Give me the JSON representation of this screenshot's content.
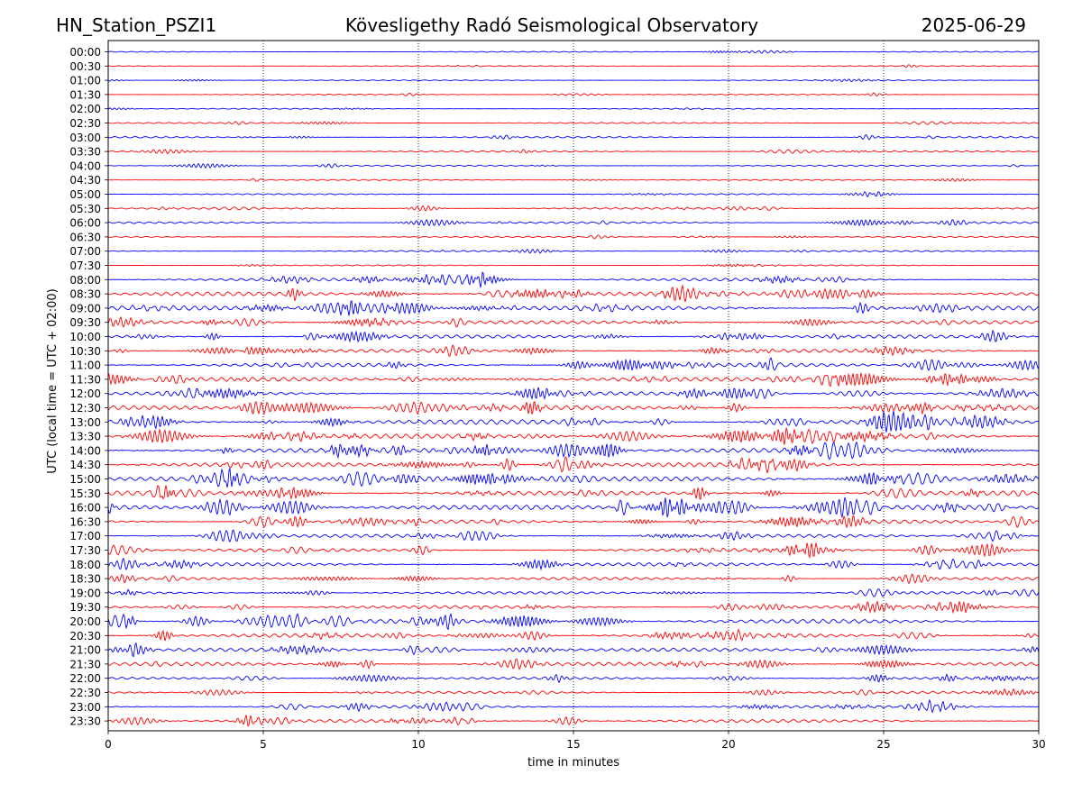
{
  "header": {
    "station": "HN_Station_PSZI1",
    "observatory": "Kövesligethy Radó Seismological Observatory",
    "date": "2025-06-29"
  },
  "chart_data": {
    "type": "line",
    "title": "Kövesligethy Radó Seismological Observatory",
    "xlabel": "time in minutes",
    "ylabel": "UTC (local time = UTC + 02:00)",
    "xlim": [
      0,
      30
    ],
    "x_ticks": [
      "0",
      "5",
      "10",
      "15",
      "20",
      "25",
      "30"
    ],
    "y_ticks": [
      "00:00",
      "00:30",
      "01:00",
      "01:30",
      "02:00",
      "02:30",
      "03:00",
      "03:30",
      "04:00",
      "04:30",
      "05:00",
      "05:30",
      "06:00",
      "06:30",
      "07:00",
      "07:30",
      "08:00",
      "08:30",
      "09:00",
      "09:30",
      "10:00",
      "10:30",
      "11:00",
      "11:30",
      "12:00",
      "12:30",
      "13:00",
      "13:30",
      "14:00",
      "14:30",
      "15:00",
      "15:30",
      "16:00",
      "16:30",
      "17:00",
      "17:30",
      "18:00",
      "18:30",
      "19:00",
      "19:30",
      "20:00",
      "20:30",
      "21:00",
      "21:30",
      "22:00",
      "22:30",
      "23:00",
      "23:30"
    ],
    "vertical_gridlines_at": [
      5,
      10,
      15,
      20,
      25
    ],
    "series_colors": [
      "#0000ff",
      "#ff0000"
    ],
    "trace_activity": [
      0.06,
      0.05,
      0.05,
      0.05,
      0.08,
      0.12,
      0.18,
      0.15,
      0.12,
      0.1,
      0.1,
      0.25,
      0.25,
      0.15,
      0.15,
      0.1,
      0.5,
      0.75,
      0.85,
      0.6,
      0.6,
      0.55,
      0.65,
      0.75,
      0.6,
      0.8,
      0.9,
      0.85,
      0.85,
      0.8,
      0.85,
      0.8,
      0.9,
      0.65,
      0.55,
      0.55,
      0.6,
      0.45,
      0.4,
      0.55,
      0.7,
      0.7,
      0.6,
      0.6,
      0.35,
      0.35,
      0.4,
      0.5
    ]
  }
}
